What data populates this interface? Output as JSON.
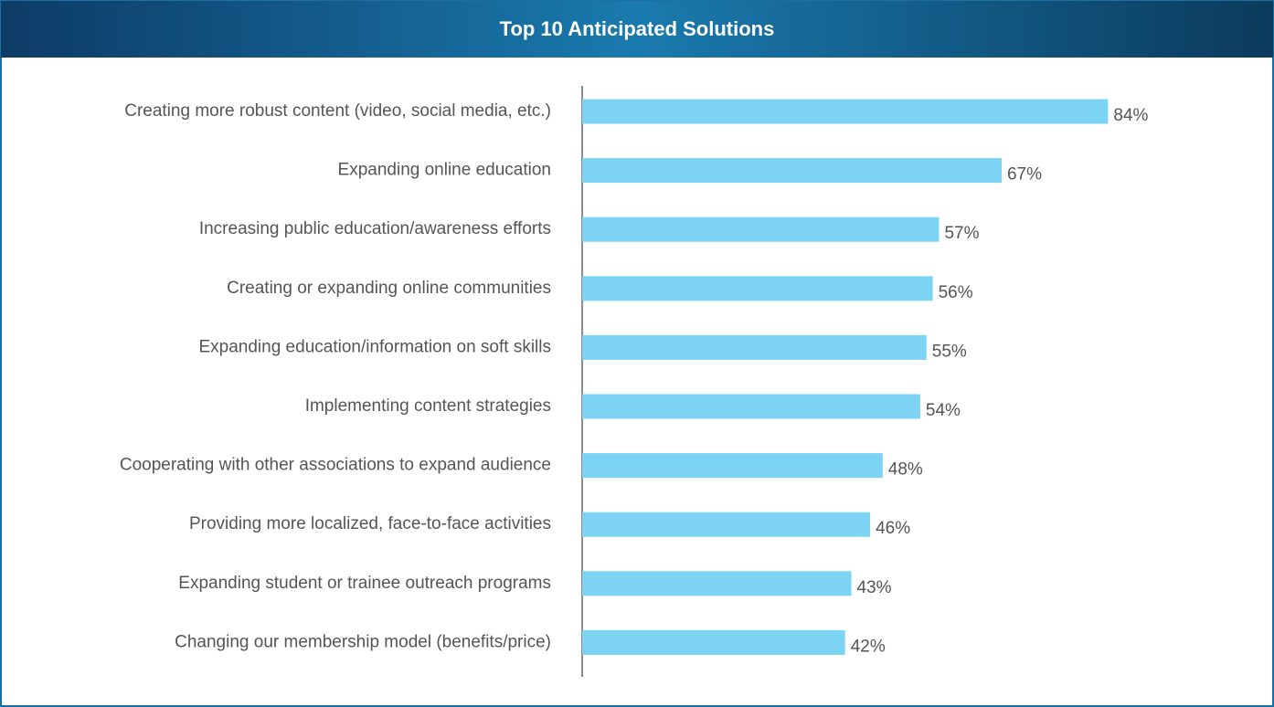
{
  "chart_data": {
    "type": "bar",
    "title": "Top 10 Anticipated Solutions",
    "categories": [
      "Creating more robust content (video, social media, etc.)",
      "Expanding online education",
      "Increasing public education/awareness efforts",
      "Creating or expanding online communities",
      "Expanding education/information on soft skills",
      "Implementing content strategies",
      "Cooperating with other associations to expand audience",
      "Providing more localized, face-to-face activities",
      "Expanding student or trainee outreach programs",
      "Changing our membership model (benefits/price)"
    ],
    "values": [
      84,
      67,
      57,
      56,
      55,
      54,
      48,
      46,
      43,
      42
    ],
    "value_labels": [
      "84%",
      "67%",
      "57%",
      "56%",
      "55%",
      "54%",
      "48%",
      "46%",
      "43%",
      "42%"
    ],
    "color": "#7dd3f4",
    "xlim": [
      0,
      100
    ]
  }
}
